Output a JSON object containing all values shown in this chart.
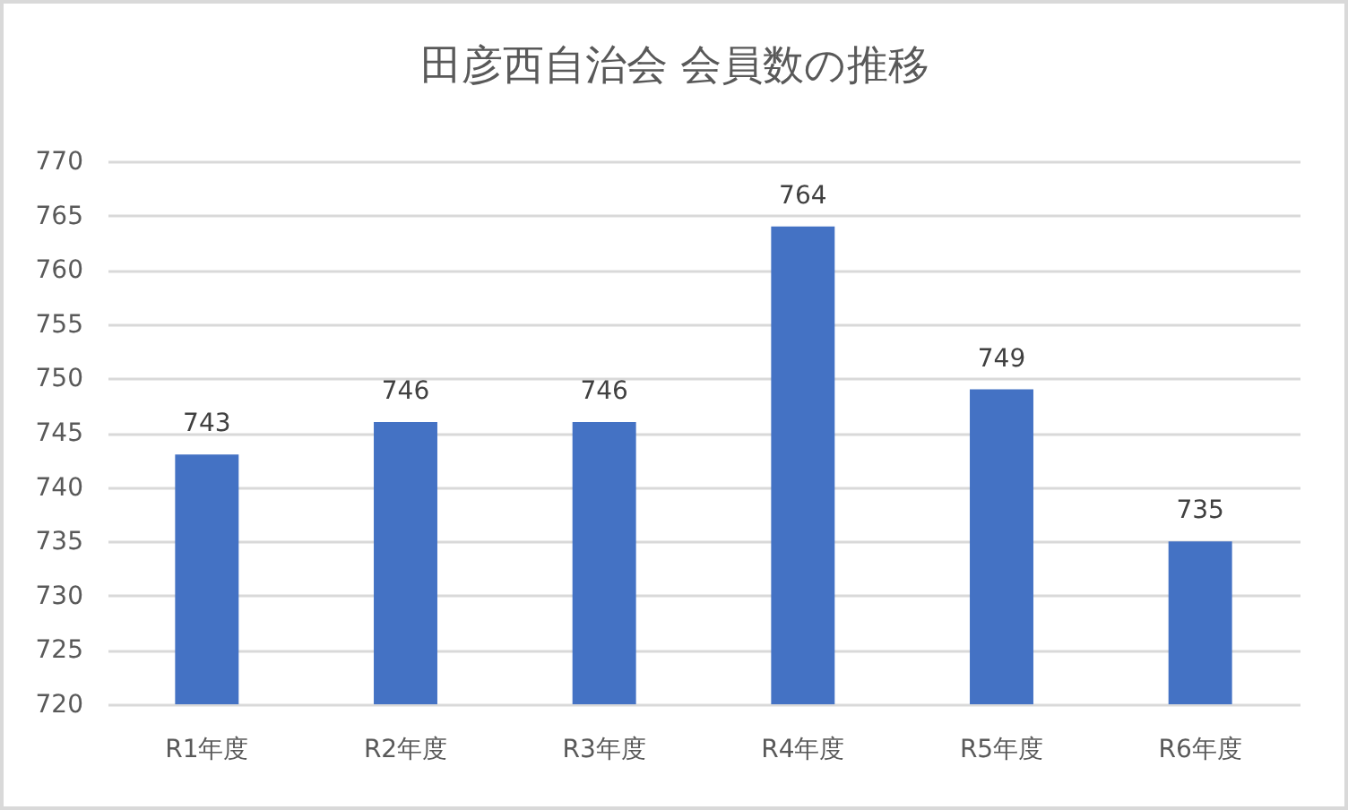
{
  "chart_data": {
    "type": "bar",
    "title": "田彦西自治会 会員数の推移",
    "categories": [
      "R1年度",
      "R2年度",
      "R3年度",
      "R4年度",
      "R5年度",
      "R6年度"
    ],
    "values": [
      743,
      746,
      746,
      764,
      749,
      735
    ],
    "color": "#4472c4",
    "ylim": [
      720,
      770
    ],
    "yticks": [
      720,
      725,
      730,
      735,
      740,
      745,
      750,
      755,
      760,
      765,
      770
    ],
    "grid": "y",
    "data_labels": true
  }
}
